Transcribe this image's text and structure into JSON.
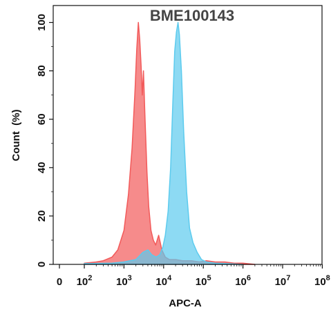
{
  "chart_data": {
    "type": "area",
    "title": "BME100143",
    "xlabel": "APC-A",
    "ylabel": "Count  (%)",
    "x_scale": "biexponential",
    "x_ticks": [
      {
        "value": 0,
        "base": "0",
        "exp": ""
      },
      {
        "value": 100,
        "base": "10",
        "exp": "2"
      },
      {
        "value": 1000,
        "base": "10",
        "exp": "3"
      },
      {
        "value": 10000,
        "base": "10",
        "exp": "4"
      },
      {
        "value": 100000,
        "base": "10",
        "exp": "5"
      },
      {
        "value": 1000000,
        "base": "10",
        "exp": "6"
      },
      {
        "value": 10000000,
        "base": "10",
        "exp": "7"
      },
      {
        "value": 100000000,
        "base": "10",
        "exp": "8"
      }
    ],
    "y_ticks": [
      0,
      20,
      40,
      60,
      80,
      100
    ],
    "ylim": [
      0,
      107
    ],
    "grid": false,
    "legend": "none",
    "series": [
      {
        "color": "#f25a5a",
        "x": [
          100,
          200,
          300,
          500,
          700,
          1000,
          1300,
          1600,
          1900,
          2100,
          2300,
          2500,
          2700,
          2900,
          3100,
          3400,
          3800,
          4200,
          4800,
          5500,
          6300,
          7500,
          9000,
          11000,
          14000,
          20000,
          30000,
          50000,
          80000,
          120000,
          200000,
          350000,
          600000,
          1000000,
          2000000
        ],
        "y": [
          0.5,
          1,
          1.5,
          3,
          6,
          14,
          29,
          48,
          72,
          89,
          100,
          93,
          82,
          70,
          80,
          60,
          38,
          24,
          14,
          10,
          8,
          12,
          6,
          3,
          2,
          2,
          1.5,
          1.5,
          1,
          1.5,
          1,
          1,
          0.5,
          0.5,
          0
        ]
      },
      {
        "color": "#5ccbee",
        "x": [
          100,
          500,
          1000,
          2000,
          3000,
          4000,
          5000,
          6500,
          8000,
          9500,
          11000,
          13000,
          15000,
          17000,
          19000,
          21000,
          23000,
          25000,
          28000,
          32000,
          38000,
          45000,
          55000,
          70000,
          90000,
          120000,
          200000,
          400000,
          1000000
        ],
        "y": [
          0.3,
          0.5,
          1,
          2,
          5,
          6,
          4,
          3,
          4,
          7,
          12,
          22,
          40,
          66,
          88,
          96,
          100,
          95,
          80,
          55,
          30,
          15,
          9,
          5,
          2,
          1,
          0.5,
          0.3,
          0
        ]
      }
    ]
  }
}
